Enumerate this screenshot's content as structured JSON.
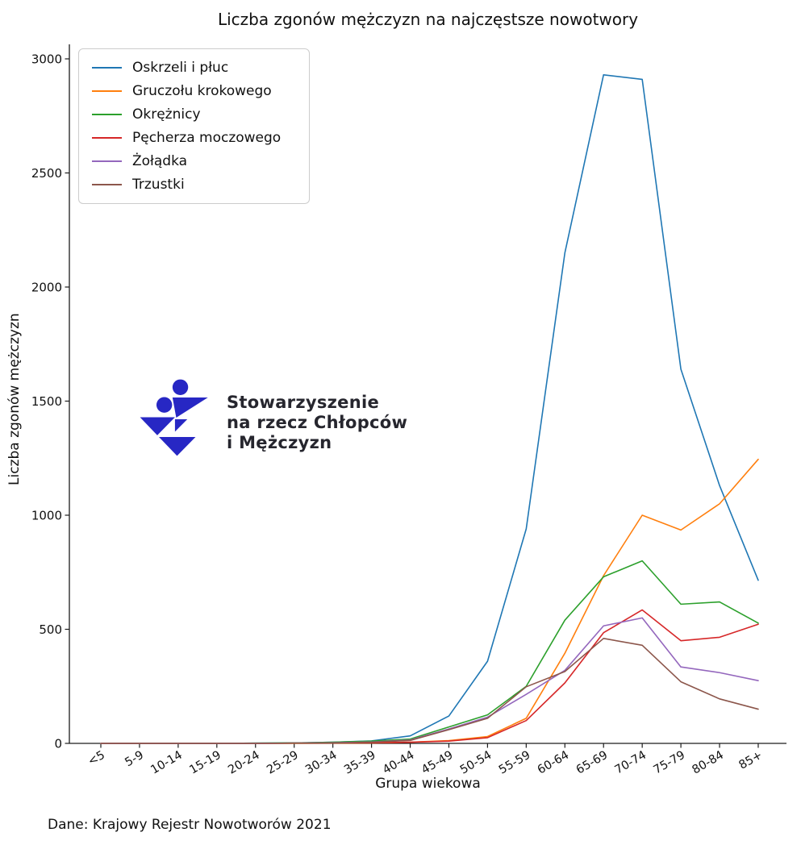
{
  "source_note": "Dane: Krajowy Rejestr Nowotworów 2021",
  "logo": {
    "line1": "Stowarzyszenie",
    "line2": "na rzecz Chłopców",
    "line3": "i Mężczyzn",
    "icon_color": "#2727c4",
    "text_color": "#26262e"
  },
  "axis_color": "#1c1c1c",
  "chart_data": {
    "type": "line",
    "title": "Liczba zgonów mężczyzn na najczęstsze nowotwory",
    "xlabel": "Grupa wiekowa",
    "ylabel": "Liczba zgonów mężczyzn",
    "categories": [
      "<5",
      "5-9",
      "10-14",
      "15-19",
      "20-24",
      "25-29",
      "30-34",
      "35-39",
      "40-44",
      "45-49",
      "50-54",
      "55-59",
      "60-64",
      "65-69",
      "70-74",
      "75-79",
      "80-84",
      "85+"
    ],
    "series": [
      {
        "name": "Oskrzeli i płuc",
        "color": "#1f77b4",
        "values": [
          0,
          0,
          0,
          0,
          1,
          2,
          5,
          11,
          33,
          120,
          360,
          940,
          2150,
          2930,
          2910,
          1640,
          1130,
          715
        ]
      },
      {
        "name": "Gruczołu krokowego",
        "color": "#ff7f0e",
        "values": [
          0,
          0,
          0,
          0,
          0,
          0,
          1,
          2,
          5,
          12,
          30,
          110,
          395,
          735,
          1000,
          935,
          1050,
          1245
        ]
      },
      {
        "name": "Okrężnicy",
        "color": "#2ca02c",
        "values": [
          0,
          0,
          0,
          0,
          1,
          2,
          5,
          10,
          19,
          72,
          125,
          250,
          540,
          730,
          800,
          610,
          620,
          527
        ]
      },
      {
        "name": "Pęcherza moczowego",
        "color": "#d62728",
        "values": [
          0,
          0,
          0,
          0,
          0,
          1,
          2,
          3,
          5,
          10,
          25,
          100,
          265,
          485,
          585,
          450,
          465,
          522
        ]
      },
      {
        "name": "Żołądka",
        "color": "#9467bd",
        "values": [
          0,
          0,
          0,
          0,
          0,
          1,
          3,
          6,
          15,
          63,
          115,
          215,
          320,
          515,
          550,
          335,
          310,
          275
        ]
      },
      {
        "name": "Trzustki",
        "color": "#8c564b",
        "values": [
          0,
          0,
          0,
          0,
          0,
          1,
          2,
          5,
          13,
          60,
          110,
          248,
          315,
          460,
          430,
          270,
          195,
          150
        ]
      }
    ],
    "ylim": [
      0,
      3000
    ],
    "yticks": [
      0,
      500,
      1000,
      1500,
      2000,
      2500,
      3000
    ],
    "grid": false,
    "legend_position": "upper left"
  }
}
